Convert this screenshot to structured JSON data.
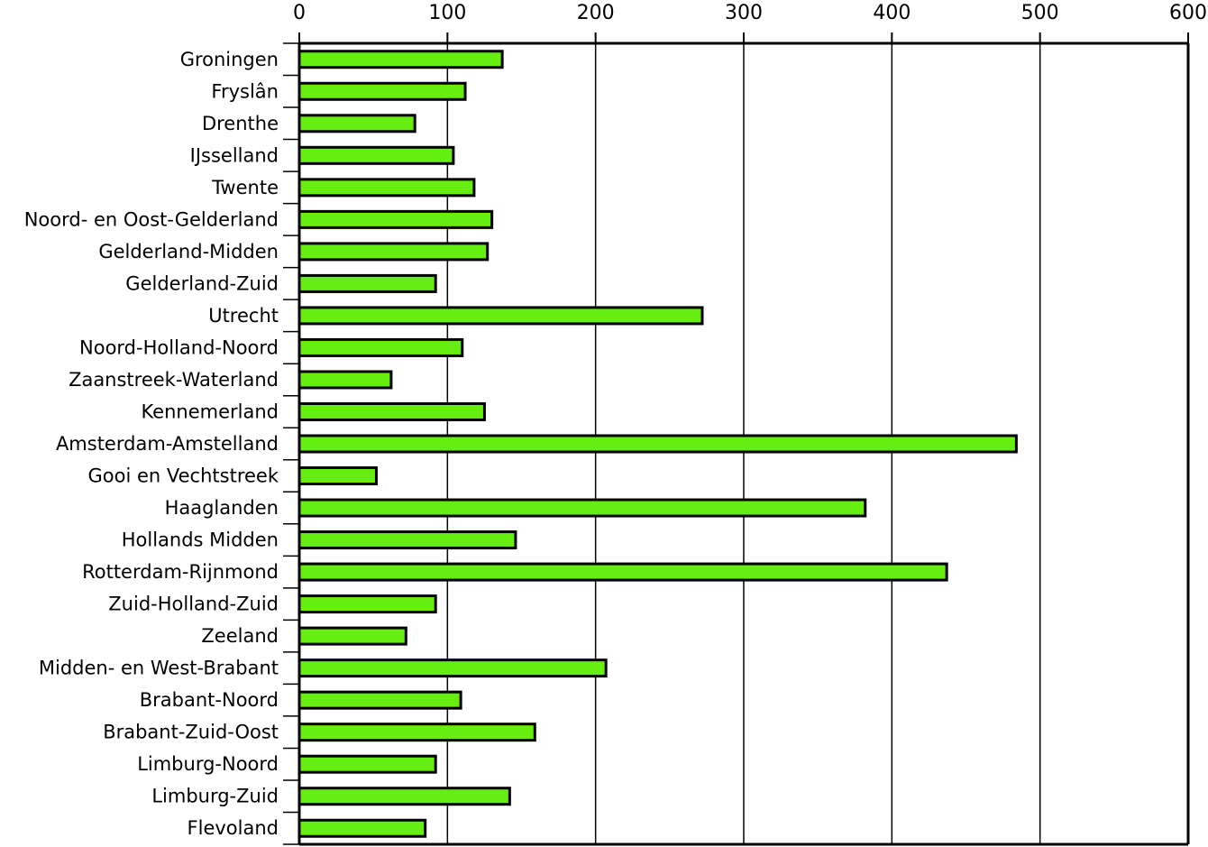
{
  "chart_data": {
    "type": "bar",
    "orientation": "horizontal",
    "title": "",
    "xlabel": "",
    "ylabel": "",
    "xlim": [
      0,
      600
    ],
    "xticks": [
      0,
      100,
      200,
      300,
      400,
      500,
      600
    ],
    "x_axis_position": "top",
    "grid": "vertical",
    "categories": [
      "Groningen",
      "Fryslân",
      "Drenthe",
      "IJsselland",
      "Twente",
      "Noord- en Oost-Gelderland",
      "Gelderland-Midden",
      "Gelderland-Zuid",
      "Utrecht",
      "Noord-Holland-Noord",
      "Zaanstreek-Waterland",
      "Kennemerland",
      "Amsterdam-Amstelland",
      "Gooi en Vechtstreek",
      "Haaglanden",
      "Hollands Midden",
      "Rotterdam-Rijnmond",
      "Zuid-Holland-Zuid",
      "Zeeland",
      "Midden- en West-Brabant",
      "Brabant-Noord",
      "Brabant-Zuid-Oost",
      "Limburg-Noord",
      "Limburg-Zuid",
      "Flevoland"
    ],
    "values": [
      137,
      112,
      78,
      104,
      118,
      130,
      127,
      92,
      272,
      110,
      62,
      125,
      484,
      52,
      382,
      146,
      437,
      92,
      72,
      207,
      109,
      159,
      92,
      142,
      85
    ],
    "bar_color": "#66ee11",
    "bar_edge_color": "#000000"
  }
}
